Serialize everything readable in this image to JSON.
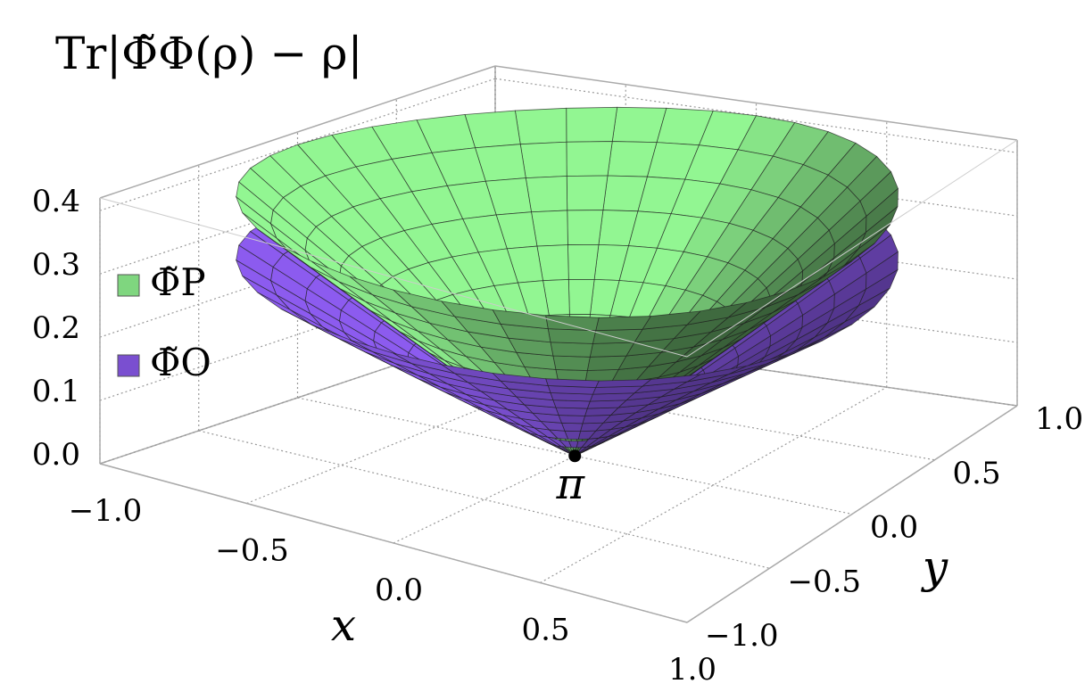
{
  "chart_data": {
    "type": "surface3d",
    "title": "Tr|Φ̃Φ(ρ) − ρ|",
    "x_label": "x",
    "y_label": "y",
    "r": [
      0,
      0.1,
      0.2,
      0.3,
      0.4,
      0.5,
      0.6,
      0.7,
      0.8,
      0.9,
      1.0
    ],
    "series": [
      {
        "name": "Φ̃P",
        "color": "#7fd67f",
        "values": [
          0,
          0.04,
          0.08,
          0.12,
          0.16,
          0.2,
          0.24,
          0.28,
          0.32,
          0.36,
          0.4
        ]
      },
      {
        "name": "Φ̃O",
        "color": "#7a4fd0",
        "values": [
          0,
          0.03,
          0.06,
          0.09,
          0.12,
          0.15,
          0.18,
          0.21,
          0.24,
          0.27,
          0.3
        ]
      }
    ],
    "points": [
      {
        "label": "π",
        "x": 0,
        "y": 0,
        "z": 0
      }
    ],
    "xlim": [
      -1,
      1
    ],
    "ylim": [
      -1,
      1
    ],
    "zlim": [
      0,
      0.42
    ],
    "xticks": [
      {
        "value": -1,
        "label": "−1.0"
      },
      {
        "value": -0.5,
        "label": "−0.5"
      },
      {
        "value": 0,
        "label": "0.0"
      },
      {
        "value": 0.5,
        "label": "0.5"
      },
      {
        "value": 1,
        "label": "1.0"
      }
    ],
    "yticks": [
      {
        "value": -1,
        "label": "−1.0"
      },
      {
        "value": -0.5,
        "label": "−0.5"
      },
      {
        "value": 0,
        "label": "0.0"
      },
      {
        "value": 0.5,
        "label": "0.5"
      },
      {
        "value": 1,
        "label": "1.0"
      }
    ],
    "zticks": [
      {
        "value": 0,
        "label": "0.0"
      },
      {
        "value": 0.1,
        "label": "0.1"
      },
      {
        "value": 0.2,
        "label": "0.2"
      },
      {
        "value": 0.3,
        "label": "0.3"
      },
      {
        "value": 0.4,
        "label": "0.4"
      }
    ],
    "grid": true,
    "legend": "left"
  }
}
